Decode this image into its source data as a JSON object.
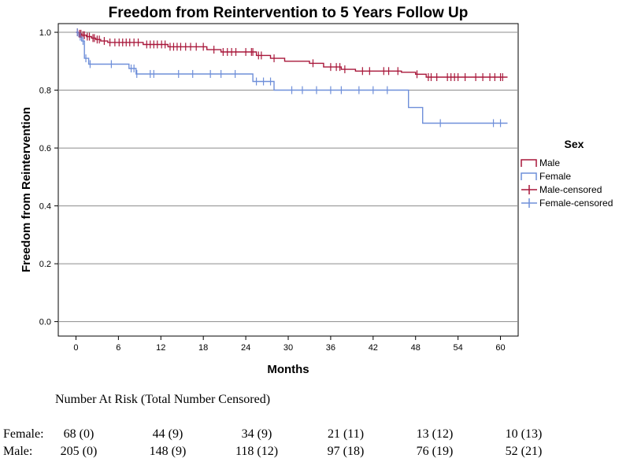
{
  "chart_data": {
    "type": "line",
    "title": "Freedom from Reintervention to 5 Years Follow Up",
    "xlabel": "Months",
    "ylabel": "Freedom from Reintervention",
    "xlim": [
      -2.5,
      62.5
    ],
    "ylim": [
      -0.05,
      1.03
    ],
    "x_ticks": [
      0,
      6,
      12,
      18,
      24,
      30,
      36,
      42,
      48,
      54,
      60
    ],
    "x_tick_labels": [
      "0",
      "6",
      "12",
      "18",
      "24",
      "30",
      "36",
      "42",
      "48",
      "54",
      "60"
    ],
    "y_ticks": [
      0.0,
      0.2,
      0.4,
      0.6,
      0.8,
      1.0
    ],
    "y_tick_labels": [
      "0.0",
      "0.2",
      "0.4",
      "0.6",
      "0.8",
      "1.0"
    ],
    "grid": "horizontal",
    "legend": {
      "title": "Sex",
      "position": "right",
      "entries": [
        "Male",
        "Female",
        "Male-censored",
        "Female-censored"
      ]
    },
    "series": [
      {
        "name": "Male",
        "color": "#a8173a",
        "step": [
          [
            0,
            1.0
          ],
          [
            0.4,
            0.995
          ],
          [
            0.8,
            0.99
          ],
          [
            1.5,
            0.985
          ],
          [
            2.2,
            0.98
          ],
          [
            2.8,
            0.975
          ],
          [
            3.5,
            0.97
          ],
          [
            4.5,
            0.965
          ],
          [
            9.5,
            0.958
          ],
          [
            13,
            0.95
          ],
          [
            18.5,
            0.94
          ],
          [
            20.5,
            0.932
          ],
          [
            25.5,
            0.92
          ],
          [
            27.5,
            0.91
          ],
          [
            29.5,
            0.9
          ],
          [
            33,
            0.893
          ],
          [
            35,
            0.88
          ],
          [
            37.5,
            0.872
          ],
          [
            39.5,
            0.866
          ],
          [
            46,
            0.862
          ],
          [
            48,
            0.855
          ],
          [
            49.5,
            0.845
          ],
          [
            61,
            0.845
          ]
        ],
        "censored_x": [
          0.2,
          0.5,
          0.7,
          1.0,
          1.2,
          1.6,
          1.9,
          2.4,
          2.6,
          3.0,
          3.3,
          4.0,
          4.8,
          5.5,
          6.1,
          6.6,
          7.1,
          7.6,
          8.2,
          8.8,
          10.0,
          10.5,
          11.0,
          11.5,
          12.1,
          12.6,
          13.3,
          13.8,
          14.3,
          14.8,
          15.5,
          16.2,
          17.0,
          18.0,
          19.5,
          20.8,
          21.4,
          22.0,
          22.6,
          24.0,
          24.8,
          25.0,
          25.8,
          26.2,
          28.0,
          33.5,
          36.0,
          36.8,
          37.3,
          38.0,
          40.5,
          41.5,
          43.5,
          44.2,
          45.5,
          48.2,
          49.8,
          50.2,
          51.0,
          52.5,
          53.0,
          53.5,
          54.0,
          55.0,
          56.5,
          57.5,
          58.5,
          59.2,
          60.0,
          60.3
        ]
      },
      {
        "name": "Female",
        "color": "#6f8fd9",
        "step": [
          [
            0,
            1.0
          ],
          [
            0.4,
            0.985
          ],
          [
            0.8,
            0.97
          ],
          [
            1.2,
            0.91
          ],
          [
            1.8,
            0.89
          ],
          [
            7.5,
            0.875
          ],
          [
            8.5,
            0.856
          ],
          [
            25,
            0.83
          ],
          [
            28,
            0.8
          ],
          [
            47,
            0.74
          ],
          [
            49,
            0.686
          ],
          [
            61,
            0.686
          ]
        ],
        "censored_x": [
          0.2,
          0.6,
          1.0,
          1.4,
          2.0,
          5.0,
          7.8,
          8.2,
          8.6,
          10.5,
          11.0,
          14.5,
          16.5,
          19.0,
          20.5,
          22.5,
          25.5,
          26.5,
          27.5,
          30.5,
          32.0,
          34.0,
          36.0,
          37.5,
          40.0,
          42.0,
          44.0,
          51.5,
          59.0,
          60.0
        ]
      }
    ],
    "risk_table": {
      "heading": "Number At Risk (Total Number Censored)",
      "rows": [
        {
          "label": "Female:",
          "values": [
            "68 (0)",
            "44 (9)",
            "34 (9)",
            "21 (11)",
            "13 (12)",
            "10 (13)"
          ]
        },
        {
          "label": "Male:",
          "values": [
            "205 (0)",
            "148 (9)",
            "118 (12)",
            "97 (18)",
            "76 (19)",
            "52 (21)"
          ]
        }
      ]
    }
  }
}
